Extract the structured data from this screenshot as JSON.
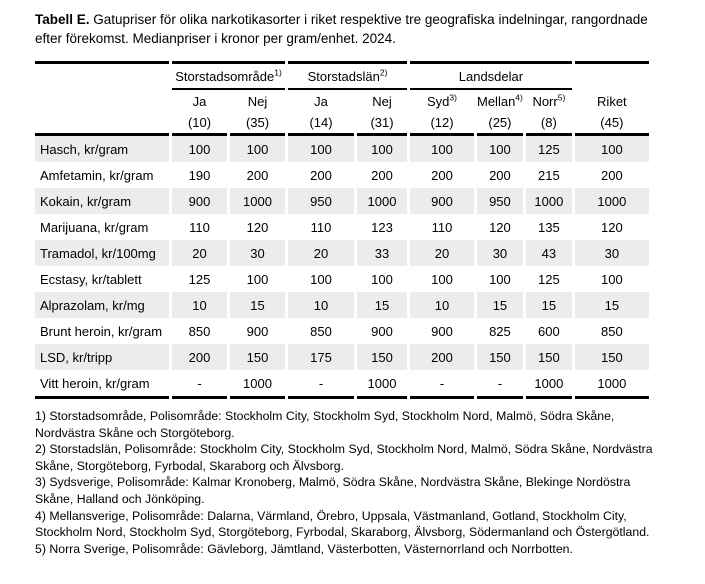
{
  "title": {
    "label": "Tabell E.",
    "text": "Gatupriser för olika narkotikasorter i riket respektive tre geografiska indelningar, rangordnade efter förekomst. Medianpriser i kronor per gram/enhet. 2024."
  },
  "table": {
    "groups": [
      {
        "label": "Storstadsområde",
        "sup": "1)",
        "span": 2
      },
      {
        "label": "Storstadslän",
        "sup": "2)",
        "span": 2
      },
      {
        "label": "Landsdelar",
        "sup": "",
        "span": 3
      }
    ],
    "columns": [
      {
        "label": "Ja",
        "sup": "",
        "count": "(10)"
      },
      {
        "label": "Nej",
        "sup": "",
        "count": "(35)"
      },
      {
        "label": "Ja",
        "sup": "",
        "count": "(14)"
      },
      {
        "label": "Nej",
        "sup": "",
        "count": "(31)"
      },
      {
        "label": "Syd",
        "sup": "3)",
        "count": "(12)"
      },
      {
        "label": "Mellan",
        "sup": "4)",
        "count": "(25)"
      },
      {
        "label": "Norr",
        "sup": "5)",
        "count": "(8)"
      },
      {
        "label": "Riket",
        "sup": "",
        "count": "(45)"
      }
    ],
    "rows": [
      {
        "label": "Hasch, kr/gram",
        "values": [
          "100",
          "100",
          "100",
          "100",
          "100",
          "100",
          "125",
          "100"
        ]
      },
      {
        "label": "Amfetamin, kr/gram",
        "values": [
          "190",
          "200",
          "200",
          "200",
          "200",
          "200",
          "215",
          "200"
        ]
      },
      {
        "label": "Kokain, kr/gram",
        "values": [
          "900",
          "1000",
          "950",
          "1000",
          "900",
          "950",
          "1000",
          "1000"
        ]
      },
      {
        "label": "Marijuana, kr/gram",
        "values": [
          "110",
          "120",
          "110",
          "123",
          "110",
          "120",
          "135",
          "120"
        ]
      },
      {
        "label": "Tramadol, kr/100mg",
        "values": [
          "20",
          "30",
          "20",
          "33",
          "20",
          "30",
          "43",
          "30"
        ]
      },
      {
        "label": "Ecstasy, kr/tablett",
        "values": [
          "125",
          "100",
          "100",
          "100",
          "100",
          "100",
          "125",
          "100"
        ]
      },
      {
        "label": "Alprazolam, kr/mg",
        "values": [
          "10",
          "15",
          "10",
          "15",
          "10",
          "15",
          "15",
          "15"
        ]
      },
      {
        "label": "Brunt heroin, kr/gram",
        "values": [
          "850",
          "900",
          "850",
          "900",
          "900",
          "825",
          "600",
          "850"
        ]
      },
      {
        "label": "LSD, kr/tripp",
        "values": [
          "200",
          "150",
          "175",
          "150",
          "200",
          "150",
          "150",
          "150"
        ]
      },
      {
        "label": "Vitt heroin, kr/gram",
        "values": [
          "-",
          "1000",
          "-",
          "1000",
          "-",
          "-",
          "1000",
          "1000"
        ]
      }
    ]
  },
  "footnotes": [
    "1) Storstadsområde, Polisområde: Stockholm City, Stockholm Syd, Stockholm Nord, Malmö, Södra Skåne, Nordvästra Skåne och Storgöteborg.",
    "2) Storstadslän, Polisområde: Stockholm City, Stockholm Syd, Stockholm Nord, Malmö, Södra Skåne, Nordvästra Skåne, Storgöteborg, Fyrbodal, Skaraborg och Älvsborg.",
    "3) Sydsverige, Polisområde: Kalmar Kronoberg, Malmö, Södra Skåne, Nordvästra Skåne, Blekinge Nordöstra Skåne, Halland och Jönköping.",
    "4) Mellansverige, Polisområde: Dalarna, Värmland, Örebro, Uppsala, Västmanland, Gotland, Stockholm City, Stockholm Nord, Stockholm Syd, Storgöteborg, Fyrbodal, Skaraborg, Älvsborg, Södermanland och Östergötland.",
    "5) Norra Sverige, Polisområde: Gävleborg, Jämtland, Västerbotten, Västernorrland och Norrbotten."
  ],
  "colors": {
    "stripe": "#ececec",
    "rule": "#000000",
    "text": "#000000",
    "background": "#ffffff"
  }
}
